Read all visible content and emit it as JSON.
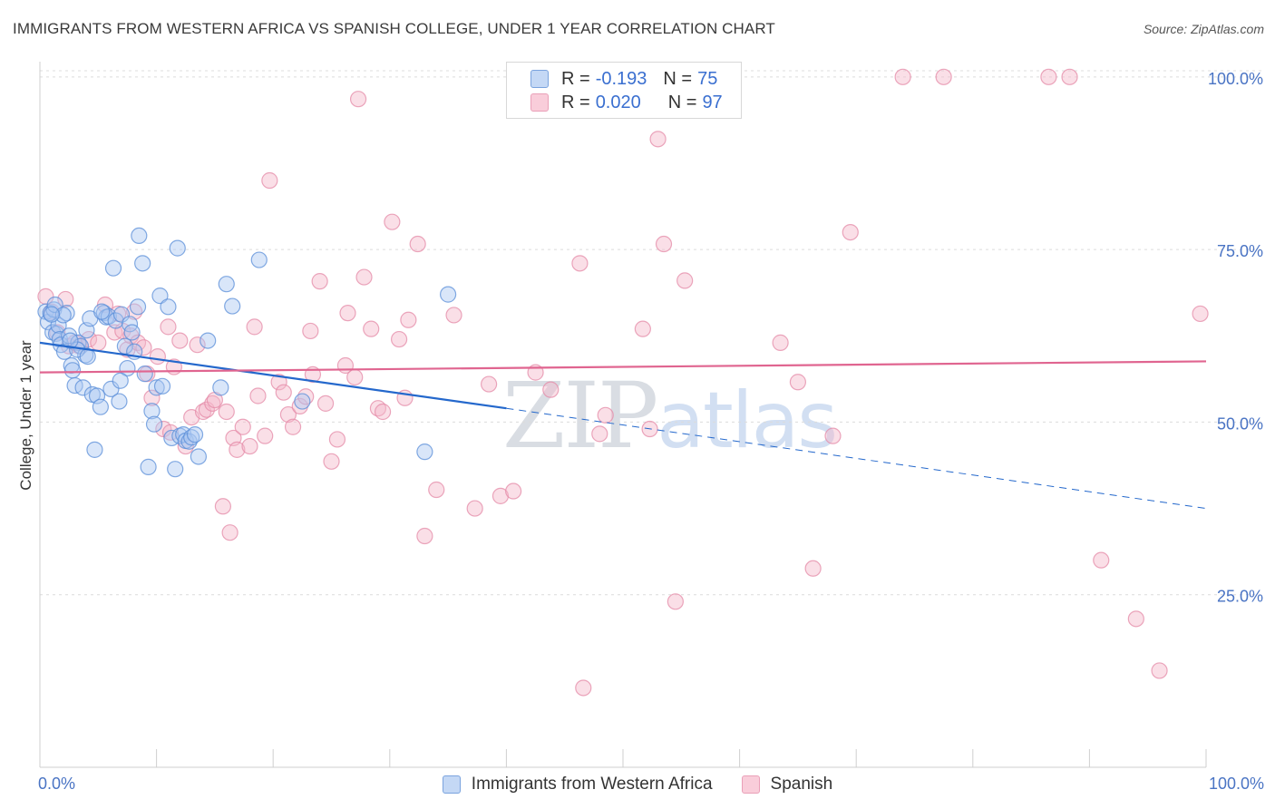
{
  "title": "IMMIGRANTS FROM WESTERN AFRICA VS SPANISH COLLEGE, UNDER 1 YEAR CORRELATION CHART",
  "source": "Source: ZipAtlas.com",
  "watermark": {
    "zip": "ZIP",
    "atlas": "atlas"
  },
  "colors": {
    "blue_fill": "#aac8f2",
    "blue_stroke": "#5a8ed8",
    "blue_line": "#2468cc",
    "pink_fill": "#f5b8ca",
    "pink_stroke": "#e48aa7",
    "pink_line": "#e06590",
    "tick_text": "#4a74c4",
    "grid": "#dcdcdc"
  },
  "legend": {
    "r_label": "R =",
    "n_label": "N =",
    "blue": {
      "r": "-0.193",
      "n": "75"
    },
    "pink": {
      "r": "0.020",
      "n": "97"
    }
  },
  "chart_data": {
    "type": "scatter",
    "title": "IMMIGRANTS FROM WESTERN AFRICA VS SPANISH COLLEGE, UNDER 1 YEAR CORRELATION CHART",
    "xlabel": "",
    "ylabel": "College, Under 1 year",
    "xlim": [
      0,
      100
    ],
    "ylim": [
      0,
      103
    ],
    "x_tick_labels": [
      {
        "value": 0,
        "label": "0.0%"
      },
      {
        "value": 100,
        "label": "100.0%"
      }
    ],
    "y_tick_labels": [
      {
        "value": 25,
        "label": "25.0%"
      },
      {
        "value": 50,
        "label": "50.0%"
      },
      {
        "value": 75,
        "label": "75.0%"
      },
      {
        "value": 100,
        "label": "100.0%"
      }
    ],
    "grid": true,
    "legend_position": "top-center",
    "series": [
      {
        "name": "Immigrants from Western Africa",
        "color": "#5a8ed8",
        "r": -0.193,
        "n": 75,
        "trend": {
          "x0": 0,
          "y0": 61.5,
          "x1": 40,
          "y1": 52.0,
          "dashed_to_x": 100,
          "dashed_to_y": 37.5
        },
        "points": [
          [
            0.5,
            66
          ],
          [
            0.7,
            64.5
          ],
          [
            0.9,
            65.8
          ],
          [
            1.1,
            63
          ],
          [
            1.2,
            66.3
          ],
          [
            1.4,
            62.8
          ],
          [
            1.6,
            64
          ],
          [
            1.7,
            62
          ],
          [
            1.8,
            61.2
          ],
          [
            2.1,
            60.2
          ],
          [
            2.3,
            65.8
          ],
          [
            2.5,
            62.5
          ],
          [
            2.7,
            58.2
          ],
          [
            2.8,
            57.5
          ],
          [
            3.0,
            55.3
          ],
          [
            3.3,
            61.5
          ],
          [
            3.5,
            61.0
          ],
          [
            3.7,
            55
          ],
          [
            3.9,
            59.7
          ],
          [
            4.0,
            63.3
          ],
          [
            4.3,
            65
          ],
          [
            4.5,
            54
          ],
          [
            4.7,
            46
          ],
          [
            4.9,
            53.8
          ],
          [
            5.2,
            52.2
          ],
          [
            5.5,
            65.8
          ],
          [
            5.7,
            65.2
          ],
          [
            5.9,
            65.3
          ],
          [
            6.1,
            54.8
          ],
          [
            6.3,
            72.3
          ],
          [
            6.5,
            64.7
          ],
          [
            6.8,
            53
          ],
          [
            7.0,
            65.6
          ],
          [
            7.3,
            61
          ],
          [
            7.5,
            57.8
          ],
          [
            7.7,
            64.2
          ],
          [
            7.9,
            63
          ],
          [
            8.1,
            60.2
          ],
          [
            8.4,
            66.7
          ],
          [
            8.5,
            77
          ],
          [
            8.8,
            73
          ],
          [
            9.0,
            57
          ],
          [
            9.3,
            43.5
          ],
          [
            9.6,
            51.6
          ],
          [
            9.8,
            49.7
          ],
          [
            10.0,
            55
          ],
          [
            10.3,
            68.3
          ],
          [
            10.5,
            55.2
          ],
          [
            11.0,
            66.7
          ],
          [
            11.3,
            47.7
          ],
          [
            11.6,
            43.2
          ],
          [
            11.8,
            75.2
          ],
          [
            12.0,
            48
          ],
          [
            12.3,
            48.2
          ],
          [
            12.5,
            47.3
          ],
          [
            12.8,
            47.2
          ],
          [
            13.0,
            47.8
          ],
          [
            13.3,
            48.2
          ],
          [
            13.6,
            45
          ],
          [
            14.4,
            61.8
          ],
          [
            15.5,
            55
          ],
          [
            16.0,
            70
          ],
          [
            16.5,
            66.8
          ],
          [
            18.8,
            73.5
          ],
          [
            22.5,
            53
          ],
          [
            33.0,
            45.7
          ],
          [
            35.0,
            68.5
          ],
          [
            1.3,
            67
          ],
          [
            2.0,
            65.5
          ],
          [
            3.2,
            60.5
          ],
          [
            4.1,
            59.5
          ],
          [
            6.9,
            56
          ],
          [
            1.0,
            65.6
          ],
          [
            2.6,
            61.8
          ],
          [
            5.3,
            66
          ]
        ]
      },
      {
        "name": "Spanish",
        "color": "#e48aa7",
        "r": 0.02,
        "n": 97,
        "trend": {
          "x0": 0,
          "y0": 57.2,
          "x1": 100,
          "y1": 58.8
        },
        "points": [
          [
            0.5,
            68.2
          ],
          [
            1.0,
            66
          ],
          [
            1.5,
            63
          ],
          [
            2.2,
            67.8
          ],
          [
            2.5,
            61
          ],
          [
            3.0,
            61.5
          ],
          [
            3.4,
            61
          ],
          [
            4.2,
            62
          ],
          [
            5.0,
            61.5
          ],
          [
            5.6,
            67
          ],
          [
            6.4,
            63
          ],
          [
            6.7,
            65.7
          ],
          [
            7.1,
            63.2
          ],
          [
            7.5,
            60.5
          ],
          [
            7.8,
            62.5
          ],
          [
            8.1,
            66
          ],
          [
            8.4,
            61.5
          ],
          [
            8.9,
            60.8
          ],
          [
            9.2,
            57
          ],
          [
            9.6,
            53.5
          ],
          [
            10.1,
            59.5
          ],
          [
            10.6,
            49
          ],
          [
            11.0,
            63.8
          ],
          [
            11.2,
            48.5
          ],
          [
            11.5,
            58
          ],
          [
            12.0,
            61.8
          ],
          [
            12.5,
            46.5
          ],
          [
            13.0,
            50.7
          ],
          [
            13.5,
            61.2
          ],
          [
            14.0,
            51.5
          ],
          [
            14.3,
            51.8
          ],
          [
            14.8,
            52.7
          ],
          [
            15.0,
            53.2
          ],
          [
            15.7,
            37.8
          ],
          [
            16.0,
            51.5
          ],
          [
            16.3,
            34
          ],
          [
            16.6,
            47.7
          ],
          [
            16.9,
            46
          ],
          [
            17.4,
            49.3
          ],
          [
            18.0,
            46.5
          ],
          [
            18.4,
            63.8
          ],
          [
            18.7,
            53.8
          ],
          [
            19.3,
            48
          ],
          [
            19.7,
            85
          ],
          [
            20.5,
            55.8
          ],
          [
            20.9,
            54.3
          ],
          [
            21.3,
            51.1
          ],
          [
            21.7,
            49.3
          ],
          [
            22.3,
            52.3
          ],
          [
            22.8,
            53.7
          ],
          [
            23.2,
            63.2
          ],
          [
            23.4,
            56.9
          ],
          [
            24.0,
            70.4
          ],
          [
            24.5,
            52.7
          ],
          [
            25.0,
            44.3
          ],
          [
            25.5,
            47.5
          ],
          [
            26.2,
            58.2
          ],
          [
            26.4,
            65.8
          ],
          [
            27.0,
            56.5
          ],
          [
            27.3,
            96.8
          ],
          [
            27.8,
            71
          ],
          [
            28.4,
            63.5
          ],
          [
            29.0,
            52
          ],
          [
            29.4,
            51.5
          ],
          [
            30.2,
            79
          ],
          [
            30.8,
            62
          ],
          [
            31.3,
            53.5
          ],
          [
            31.6,
            64.8
          ],
          [
            32.4,
            75.8
          ],
          [
            33.0,
            33.5
          ],
          [
            34.0,
            40.2
          ],
          [
            35.5,
            65.5
          ],
          [
            37.3,
            37.5
          ],
          [
            38.5,
            55.5
          ],
          [
            39.5,
            39.3
          ],
          [
            40.6,
            40
          ],
          [
            42.5,
            57.2
          ],
          [
            43.8,
            54.7
          ],
          [
            46.3,
            73
          ],
          [
            46.6,
            11.5
          ],
          [
            48.0,
            48.3
          ],
          [
            48.5,
            51
          ],
          [
            51.7,
            63.5
          ],
          [
            52.3,
            49
          ],
          [
            53.0,
            91
          ],
          [
            53.5,
            75.8
          ],
          [
            54.5,
            24
          ],
          [
            55.3,
            70.5
          ],
          [
            63.5,
            61.5
          ],
          [
            65.0,
            55.8
          ],
          [
            66.3,
            28.8
          ],
          [
            68.0,
            48
          ],
          [
            69.5,
            77.5
          ],
          [
            74.0,
            100
          ],
          [
            77.5,
            100
          ],
          [
            86.5,
            100
          ],
          [
            88.3,
            100
          ],
          [
            91.0,
            30
          ],
          [
            94.0,
            21.5
          ],
          [
            96.0,
            14
          ],
          [
            99.5,
            65.7
          ]
        ]
      }
    ]
  },
  "bottom_legend": [
    "Immigrants from Western Africa",
    "Spanish"
  ]
}
